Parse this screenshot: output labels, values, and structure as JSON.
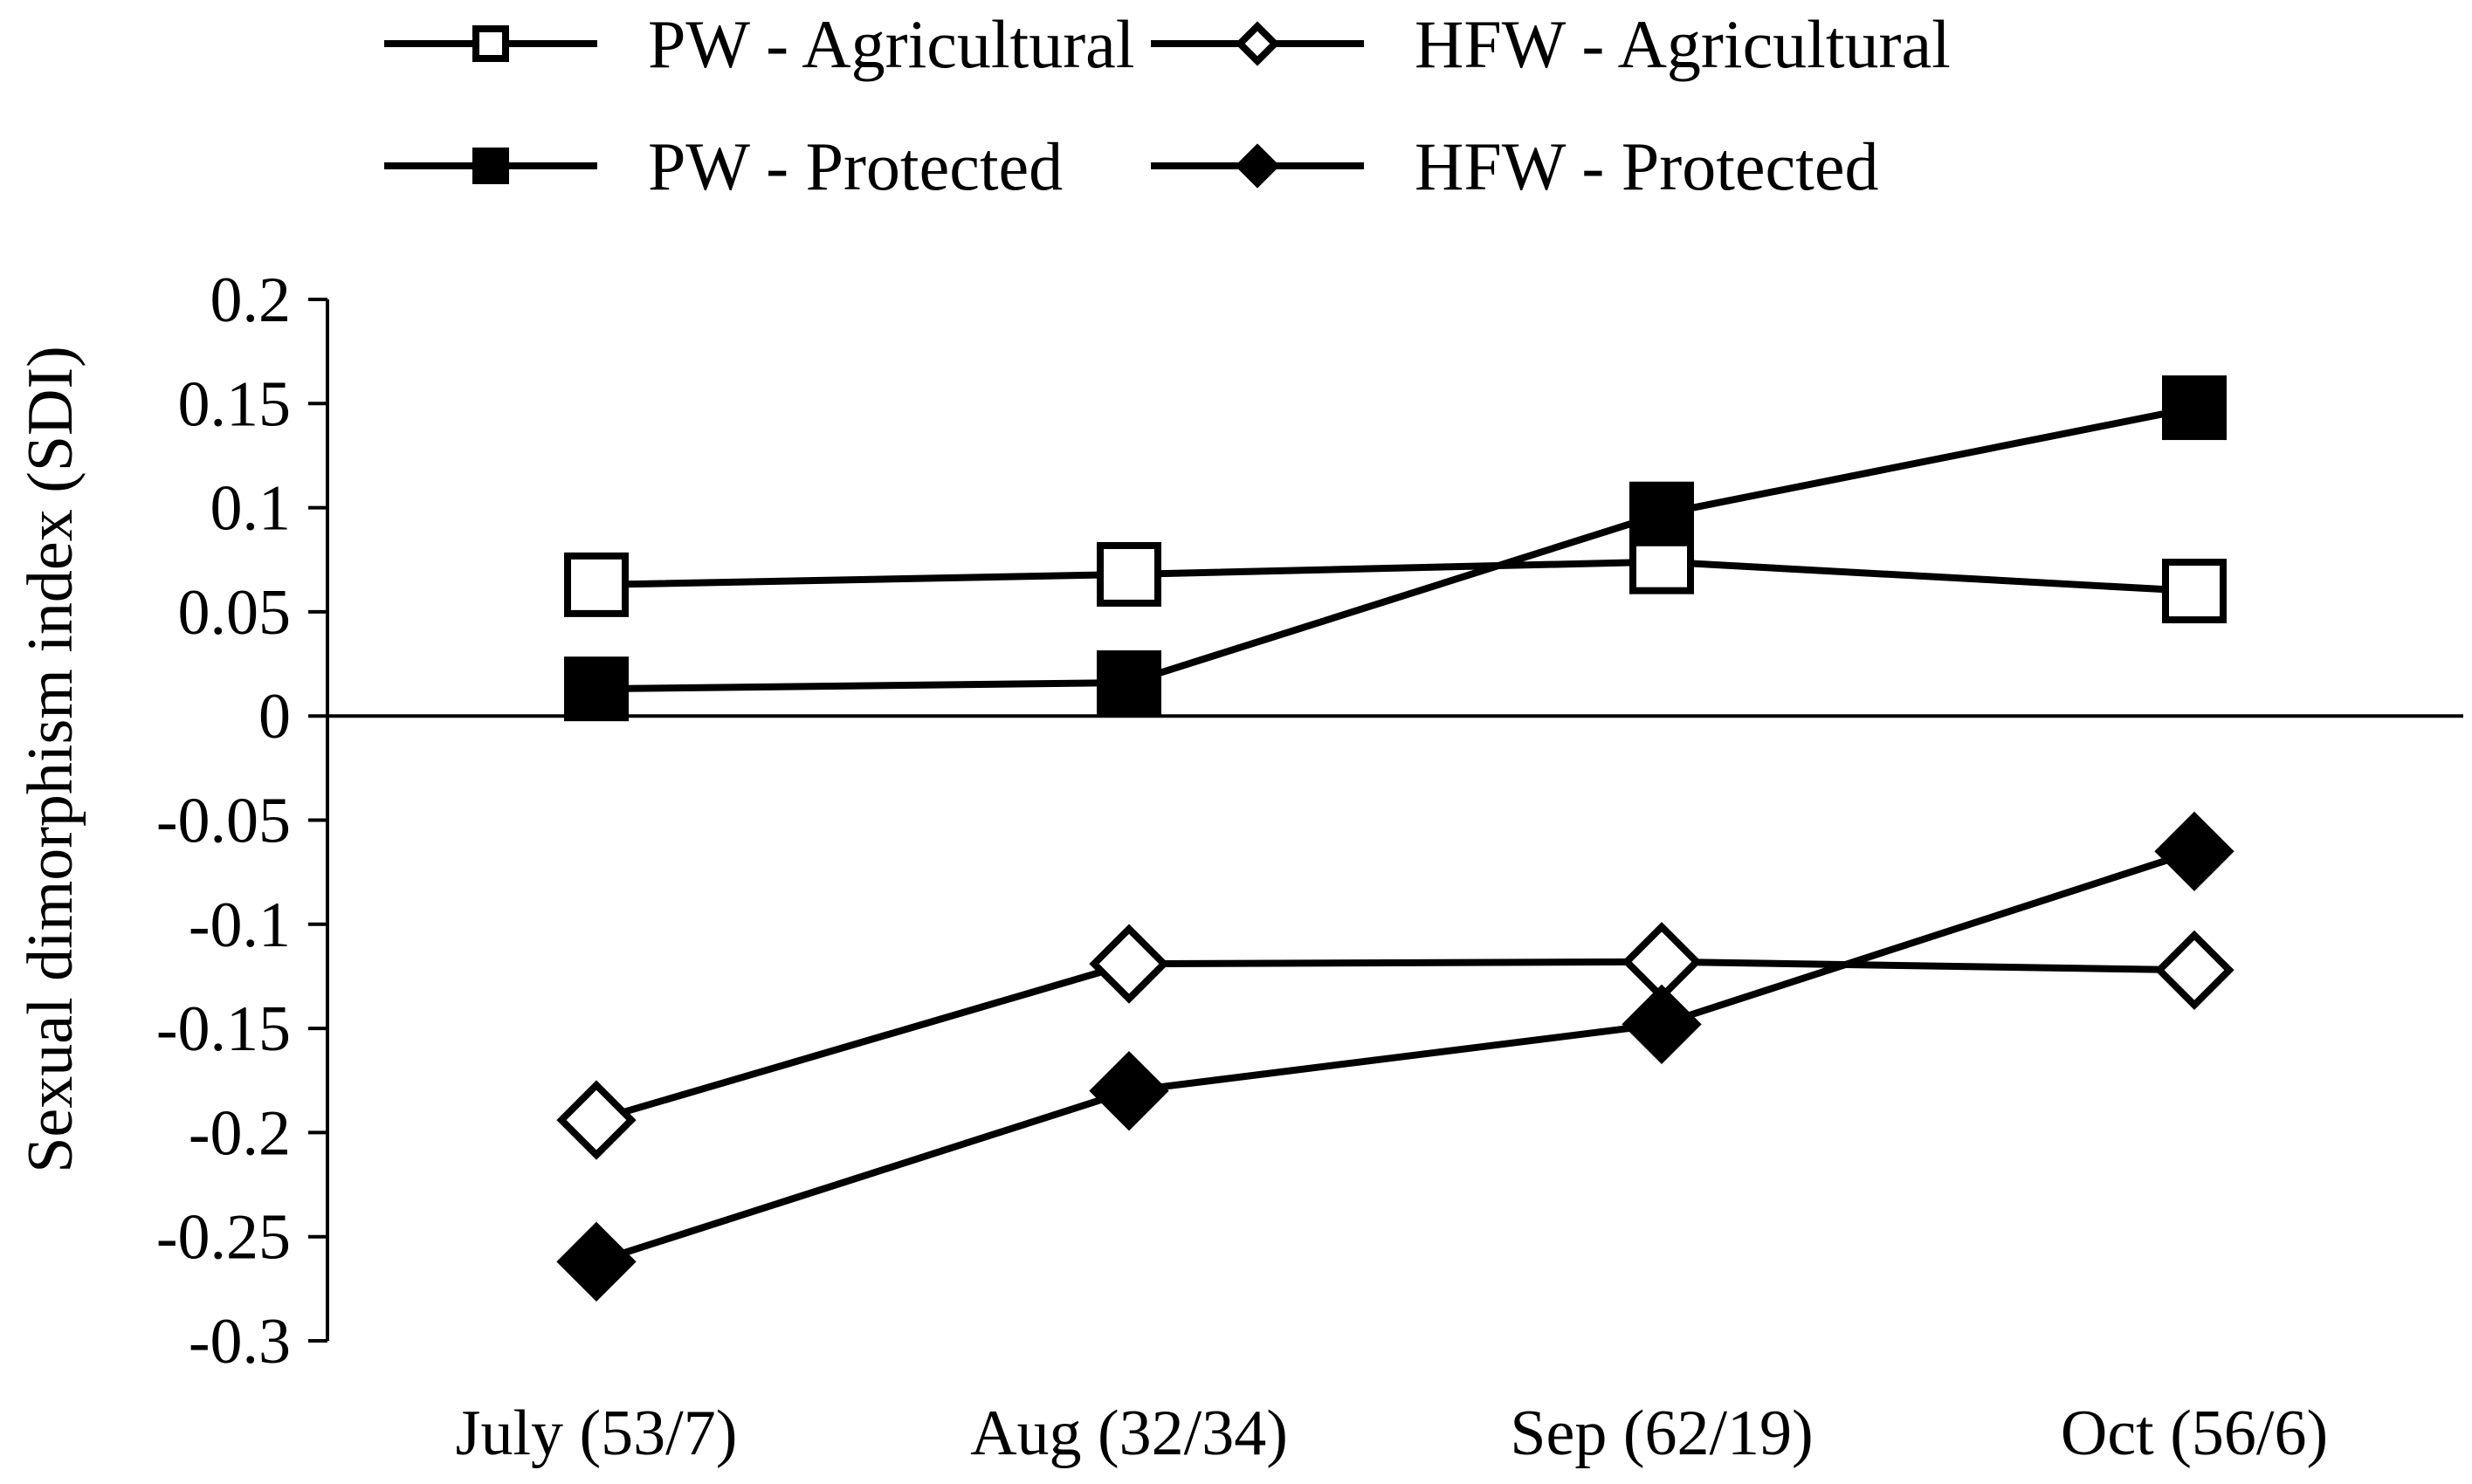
{
  "chart_data": {
    "type": "line",
    "title": "",
    "xlabel": "",
    "ylabel": "Sexual dimorphism index (SDI)",
    "ylim": [
      -0.3,
      0.2
    ],
    "yticks": [
      {
        "value": 0.2,
        "label": "0.2"
      },
      {
        "value": 0.15,
        "label": "0.15"
      },
      {
        "value": 0.1,
        "label": "0.1"
      },
      {
        "value": 0.05,
        "label": "0.05"
      },
      {
        "value": 0,
        "label": "0"
      },
      {
        "value": -0.05,
        "label": "-0.05"
      },
      {
        "value": -0.1,
        "label": "-0.1"
      },
      {
        "value": -0.15,
        "label": "-0.15"
      },
      {
        "value": -0.2,
        "label": "-0.2"
      },
      {
        "value": -0.25,
        "label": "-0.25"
      },
      {
        "value": -0.3,
        "label": "-0.3"
      }
    ],
    "categories": [
      "July (53/7)",
      "Aug (32/34)",
      "Sep (62/19)",
      "Oct (56/6)"
    ],
    "series": [
      {
        "name": "PW - Agricultural",
        "marker": "square",
        "filled": false,
        "values": [
          0.063,
          0.068,
          0.074,
          0.06
        ]
      },
      {
        "name": "HFW - Agricultural",
        "marker": "diamond",
        "filled": false,
        "values": [
          -0.194,
          -0.119,
          -0.118,
          -0.122
        ]
      },
      {
        "name": "PW - Protected",
        "marker": "square",
        "filled": true,
        "values": [
          0.013,
          0.016,
          0.097,
          0.148
        ]
      },
      {
        "name": "HFW - Protected",
        "marker": "diamond",
        "filled": true,
        "values": [
          -0.262,
          -0.18,
          -0.148,
          -0.065
        ]
      }
    ],
    "legend_position": "top",
    "grid": false,
    "colors": {
      "line": "#000000",
      "fill": "#000000",
      "hollow": "#ffffff"
    }
  }
}
